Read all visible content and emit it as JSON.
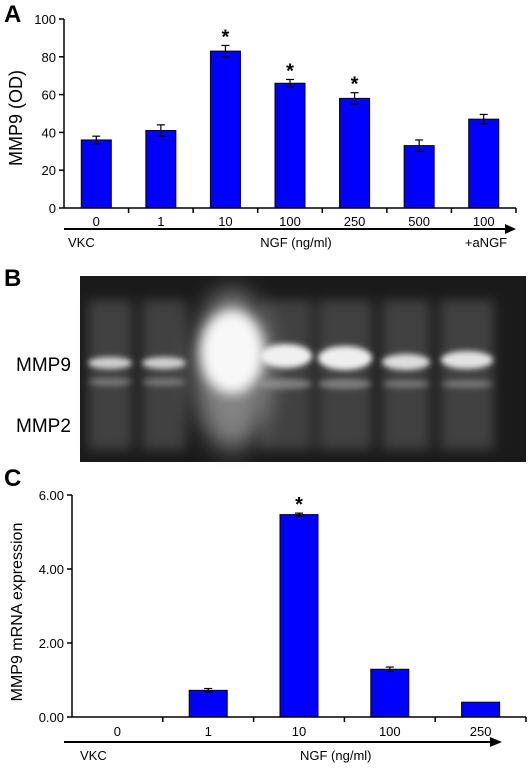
{
  "panels": {
    "a": {
      "letter": "A",
      "ylabel": "MMP9 (OD)",
      "caption_left": "VKC",
      "caption_center": "NGF (ng/ml)",
      "caption_right": "+aNGF"
    },
    "b": {
      "letter": "B",
      "band_upper": "MMP9",
      "band_lower": "MMP2"
    },
    "c": {
      "letter": "C",
      "ylabel": "MMP9 mRNA expression",
      "caption_left": "VKC",
      "caption_center": "NGF (ng/ml)"
    }
  },
  "chart_data": [
    {
      "type": "bar",
      "panel": "A",
      "title": "",
      "xlabel": "NGF (ng/ml)",
      "ylabel": "MMP9 (OD)",
      "categories": [
        "0",
        "1",
        "10",
        "100",
        "250",
        "500",
        "100"
      ],
      "values": [
        36,
        41,
        83,
        66,
        58,
        33,
        47
      ],
      "errors": [
        2,
        3,
        3,
        2,
        3,
        3,
        2.5
      ],
      "significant": [
        false,
        false,
        true,
        true,
        true,
        false,
        false
      ],
      "significance_marker": "*",
      "ylim": [
        0,
        100
      ],
      "yticks": [
        0,
        20,
        40,
        60,
        80,
        100
      ],
      "ytick_labels": [
        "0",
        "20",
        "40",
        "60",
        "80",
        "100"
      ],
      "bar_color": "#0000ff",
      "grid": false
    },
    {
      "type": "bar",
      "panel": "C",
      "title": "",
      "xlabel": "NGF (ng/ml)",
      "ylabel": "MMP9 mRNA expression",
      "categories": [
        "0",
        "1",
        "10",
        "100",
        "250"
      ],
      "values": [
        0,
        0.72,
        5.47,
        1.29,
        0.4
      ],
      "errors": [
        0,
        0.05,
        0.04,
        0.06,
        0
      ],
      "significant": [
        false,
        false,
        true,
        false,
        false
      ],
      "significance_marker": "*",
      "ylim": [
        0,
        6
      ],
      "yticks": [
        0,
        2,
        4,
        6
      ],
      "ytick_labels": [
        "0.00",
        "2.00",
        "4.00",
        "6.00"
      ],
      "bar_color": "#0000ff",
      "grid": false
    }
  ],
  "colors": {
    "bar": "#0000ff",
    "gel_background": "#1a1a1a"
  }
}
